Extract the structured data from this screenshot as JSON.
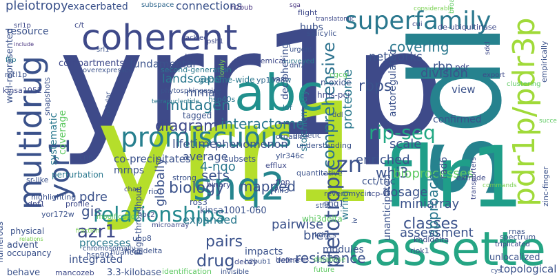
{
  "words": [
    {
      "text": "yrr1p",
      "color": "#3e4a89"
    },
    {
      "text": "yrr1",
      "color": "#b5de2b"
    },
    {
      "text": "sdl",
      "color": "#26828e"
    },
    {
      "text": "flr1",
      "color": "#1f9e89"
    },
    {
      "text": "cassette",
      "color": "#25a584"
    },
    {
      "text": "multidrug",
      "color": "#3b528b"
    },
    {
      "text": "coherent",
      "color": "#3e4989"
    },
    {
      "text": "superfamily",
      "color": "#2a788e"
    },
    {
      "text": "abc",
      "color": "#21908d"
    },
    {
      "text": "promiscuous",
      "color": "#277f8e"
    },
    {
      "text": "snq2",
      "color": "#25858e"
    },
    {
      "text": "yor1",
      "color": "#3b528b"
    },
    {
      "text": "pdr1p/pdr3p",
      "color": "#a0da39"
    },
    {
      "text": "relationships",
      "color": "#23888e"
    },
    {
      "text": "azr1",
      "color": "#3e4989"
    },
    {
      "text": "zn",
      "color": "#3b528b"
    },
    {
      "text": "pleiotropic",
      "color": "#3b528b"
    },
    {
      "text": "comprehensive",
      "color": "#2c728e"
    },
    {
      "text": "rip-seq",
      "color": "#22a884"
    },
    {
      "text": "diagram",
      "color": "#3e4989"
    },
    {
      "text": "mutagen",
      "color": "#2a788e"
    },
    {
      "text": "landscape",
      "color": "#2a788e"
    },
    {
      "text": "fundamental",
      "color": "#3b528b"
    },
    {
      "text": "compartments",
      "color": "#3e4989"
    },
    {
      "text": "pleiotropy",
      "color": "#3b528b"
    },
    {
      "text": "exacerbated",
      "color": "#3b528b"
    },
    {
      "text": "subspace",
      "color": "#31688e"
    },
    {
      "text": "connections",
      "color": "#3b528b"
    },
    {
      "text": "h2bub",
      "color": "#46327e"
    },
    {
      "text": "resource",
      "color": "#3b528b"
    },
    {
      "text": "well-represented",
      "color": "#3b528b"
    },
    {
      "text": "kinsa1052",
      "color": "#3e4989"
    },
    {
      "text": "mtl1p",
      "color": "#3b528b"
    },
    {
      "text": "flip",
      "color": "#2a788e"
    },
    {
      "text": "include",
      "color": "#46327e"
    },
    {
      "text": "srl1p",
      "color": "#3e4989"
    },
    {
      "text": "c/t",
      "color": "#3e4989"
    },
    {
      "text": "mrnas",
      "color": "#3b528b"
    },
    {
      "text": "hir2",
      "color": "#3e4989"
    },
    {
      "text": "tagged",
      "color": "#3b528b"
    },
    {
      "text": "genome-wide",
      "color": "#2a788e"
    },
    {
      "text": "yp1088w",
      "color": "#31688e"
    },
    {
      "text": "second-generation",
      "color": "#2a788e"
    },
    {
      "text": "phytosphingosine",
      "color": "#3b528b"
    },
    {
      "text": "hsp40s",
      "color": "#2a788e"
    },
    {
      "text": "tetranucleotide",
      "color": "#2a788e"
    },
    {
      "text": "agrochemical",
      "color": "#3e4989"
    },
    {
      "text": "vast",
      "color": "#3e4989"
    },
    {
      "text": "lowly",
      "color": "#7ad151"
    },
    {
      "text": "hubs",
      "color": "#3b528b"
    },
    {
      "text": "flight",
      "color": "#3e4989"
    },
    {
      "text": "sga",
      "color": "#46327e"
    },
    {
      "text": "surveyed",
      "color": "#2a788e"
    },
    {
      "text": "deciphering",
      "color": "#3b528b"
    },
    {
      "text": "translatomic",
      "color": "#3e4989"
    },
    {
      "text": "networks",
      "color": "#3b528b"
    },
    {
      "text": "covering",
      "color": "#2a788e"
    },
    {
      "text": "division",
      "color": "#3b528b"
    },
    {
      "text": "rbp",
      "color": "#3b528b"
    },
    {
      "text": "pdr",
      "color": "#3e4989"
    },
    {
      "text": "rbps",
      "color": "#3b528b"
    },
    {
      "text": "proteome",
      "color": "#2a788e"
    },
    {
      "text": "autoregulated",
      "color": "#3b528b"
    },
    {
      "text": "view",
      "color": "#3b528b"
    },
    {
      "text": "export",
      "color": "#3e4989"
    },
    {
      "text": "confirmed",
      "color": "#3b528b"
    },
    {
      "text": "scale",
      "color": "#3b528b"
    },
    {
      "text": "enriched",
      "color": "#3b528b"
    },
    {
      "text": "whi3",
      "color": "#3b528b"
    },
    {
      "text": "bioprocesses",
      "color": "#5ec962"
    },
    {
      "text": "dosage",
      "color": "#3b528b"
    },
    {
      "text": "cct/tric",
      "color": "#3b528b"
    },
    {
      "text": "tcp-1",
      "color": "#3e4989"
    },
    {
      "text": "miniarray",
      "color": "#3b528b"
    },
    {
      "text": "wiring",
      "color": "#2a788e"
    },
    {
      "text": "classes",
      "color": "#3b528b"
    },
    {
      "text": "approach",
      "color": "#2a788e"
    },
    {
      "text": "rad6",
      "color": "#3b528b"
    },
    {
      "text": "khdldelta",
      "color": "#3e4989"
    },
    {
      "text": "riok1",
      "color": "#3b528b"
    },
    {
      "text": "assessment",
      "color": "#3b528b"
    },
    {
      "text": "unanticipated",
      "color": "#3b528b"
    },
    {
      "text": "systematic",
      "color": "#2a788e"
    },
    {
      "text": "coverage",
      "color": "#5ec962"
    },
    {
      "text": "perturbation",
      "color": "#2a788e"
    },
    {
      "text": "dnf1",
      "color": "#3e4989"
    },
    {
      "text": "sr-like",
      "color": "#3b528b"
    },
    {
      "text": "pdre",
      "color": "#3b528b"
    },
    {
      "text": "gis",
      "color": "#3b528b"
    },
    {
      "text": "processes",
      "color": "#2a788e"
    },
    {
      "text": "integrated",
      "color": "#3b528b"
    },
    {
      "text": "drug",
      "color": "#3b528b"
    },
    {
      "text": "behave",
      "color": "#3b528b"
    },
    {
      "text": "mancozeb",
      "color": "#3e4989"
    },
    {
      "text": "3.3-kilobase",
      "color": "#3b528b"
    },
    {
      "text": "hsp90s",
      "color": "#3b528b"
    },
    {
      "text": "nuanced",
      "color": "#3b528b"
    },
    {
      "text": "bre1",
      "color": "#3b528b"
    },
    {
      "text": "pairs",
      "color": "#3b528b"
    },
    {
      "text": "pairwise",
      "color": "#3b528b"
    },
    {
      "text": "mapped",
      "color": "#3b528b"
    },
    {
      "text": "sets",
      "color": "#3b528b"
    },
    {
      "text": "biology",
      "color": "#3b528b"
    },
    {
      "text": "4-nqo",
      "color": "#2a788e"
    },
    {
      "text": "average",
      "color": "#3b528b"
    },
    {
      "text": "globally",
      "color": "#3b528b"
    },
    {
      "text": "expanded",
      "color": "#2a788e"
    },
    {
      "text": "lifetime",
      "color": "#3b528b"
    },
    {
      "text": "phenomenon",
      "color": "#3b528b"
    },
    {
      "text": "co-precipitates",
      "color": "#3b528b"
    },
    {
      "text": "interactome",
      "color": "#2a788e"
    },
    {
      "text": "mrnps",
      "color": "#3b528b"
    },
    {
      "text": "impacts",
      "color": "#3b528b"
    },
    {
      "text": "modules",
      "color": "#3b528b"
    },
    {
      "text": "resistance",
      "color": "#3b528b"
    },
    {
      "text": "define",
      "color": "#3b528b"
    },
    {
      "text": "topological",
      "color": "#3b528b"
    },
    {
      "text": "unlocalized",
      "color": "#3b528b"
    },
    {
      "text": "triplicated",
      "color": "#3e4989"
    },
    {
      "text": "cys",
      "color": "#3b528b"
    },
    {
      "text": "considerable",
      "color": "#7ad151"
    },
    {
      "text": "cui",
      "color": "#3e4989"
    },
    {
      "text": "de-ubiquitinase",
      "color": "#3e4989"
    },
    {
      "text": "sdcl",
      "color": "#3e4989"
    },
    {
      "text": "empirically",
      "color": "#3b528b"
    },
    {
      "text": "clustering",
      "color": "#5ec962"
    },
    {
      "text": "success",
      "color": "#5ec962"
    },
    {
      "text": "extrude",
      "color": "#3e4989"
    },
    {
      "text": "transporters",
      "color": "#3e4989"
    },
    {
      "text": "zinc-finger",
      "color": "#3b528b"
    },
    {
      "text": "rnas",
      "color": "#3b528b"
    },
    {
      "text": "spectrum",
      "color": "#3b528b"
    },
    {
      "text": "commands",
      "color": "#7ad151"
    },
    {
      "text": "advent",
      "color": "#3b528b"
    },
    {
      "text": "occupancy",
      "color": "#3b528b"
    },
    {
      "text": "numerous",
      "color": "#3b528b"
    },
    {
      "text": "physical",
      "color": "#3b528b"
    },
    {
      "text": "relations",
      "color": "#7ad151"
    },
    {
      "text": "profile",
      "color": "#3e4989"
    },
    {
      "text": "chart",
      "color": "#3e4989"
    },
    {
      "text": "cnn",
      "color": "#3b528b"
    },
    {
      "text": "snapshots",
      "color": "#3b528b"
    },
    {
      "text": "rio1",
      "color": "#3b528b"
    },
    {
      "text": "ros3",
      "color": "#3b528b"
    },
    {
      "text": "kinsa1001-060",
      "color": "#3b528b"
    },
    {
      "text": "binary",
      "color": "#3e4989"
    },
    {
      "text": "strong",
      "color": "#3b528b"
    },
    {
      "text": "subsets",
      "color": "#3b528b"
    },
    {
      "text": "organize",
      "color": "#3b528b"
    },
    {
      "text": "ylr346c",
      "color": "#3b528b"
    },
    {
      "text": "efflux",
      "color": "#3e4989"
    },
    {
      "text": "flop",
      "color": "#3e4989"
    },
    {
      "text": "hir3",
      "color": "#3b528b"
    },
    {
      "text": "reveromycin",
      "color": "#3b528b"
    },
    {
      "text": "shg1",
      "color": "#3b528b"
    },
    {
      "text": "stfs",
      "color": "#3b528b"
    },
    {
      "text": "whi3delta",
      "color": "#5ec962"
    },
    {
      "text": "kdacs",
      "color": "#3b528b"
    },
    {
      "text": "ubp8",
      "color": "#3b528b"
    },
    {
      "text": "mogldelta",
      "color": "#3b528b"
    },
    {
      "text": "identification",
      "color": "#5ec962"
    },
    {
      "text": "invisible",
      "color": "#3b528b"
    },
    {
      "text": "decay",
      "color": "#3e4989"
    },
    {
      "text": "h2bub1",
      "color": "#3b528b"
    },
    {
      "text": "microarray",
      "color": "#3e4989"
    },
    {
      "text": "high-throughput",
      "color": "#3b528b"
    },
    {
      "text": "yor172w",
      "color": "#3b528b"
    },
    {
      "text": "hpc2",
      "color": "#3e4989"
    },
    {
      "text": "highlighting",
      "color": "#3b528b"
    },
    {
      "text": "salicylic",
      "color": "#3b528b"
    },
    {
      "text": "urgent",
      "color": "#3b528b"
    },
    {
      "text": "stoichiometry",
      "color": "#2a788e"
    },
    {
      "text": "dnf2",
      "color": "#3b528b"
    },
    {
      "text": "hms-pci",
      "color": "#3e4989"
    },
    {
      "text": "lof",
      "color": "#2a788e"
    },
    {
      "text": "n-oxide",
      "color": "#3b528b"
    },
    {
      "text": "cgcg",
      "color": "#5ec962"
    },
    {
      "text": "ddl",
      "color": "#3b528b"
    },
    {
      "text": "genetic",
      "color": "#3b528b"
    },
    {
      "text": "understanding",
      "color": "#3b528b"
    },
    {
      "text": "database",
      "color": "#5ec962"
    },
    {
      "text": "future",
      "color": "#5ec962"
    },
    {
      "text": "tackled",
      "color": "#3e4989"
    },
    {
      "text": "psh1",
      "color": "#3e4989"
    },
    {
      "text": "srl1",
      "color": "#3b528b"
    },
    {
      "text": "overexpressed",
      "color": "#3b528b"
    },
    {
      "text": "cellular",
      "color": "#3b528b"
    },
    {
      "text": "fraction",
      "color": "#7ad151"
    },
    {
      "text": "modification",
      "color": "#5ec962"
    },
    {
      "text": "biogenesis",
      "color": "#3e4989"
    },
    {
      "text": "quantitative",
      "color": "#3b528b"
    },
    {
      "text": "iv",
      "color": "#3b528b"
    },
    {
      "text": "broad",
      "color": "#5ec962"
    },
    {
      "text": "chromosomally",
      "color": "#3b528b"
    }
  ]
}
